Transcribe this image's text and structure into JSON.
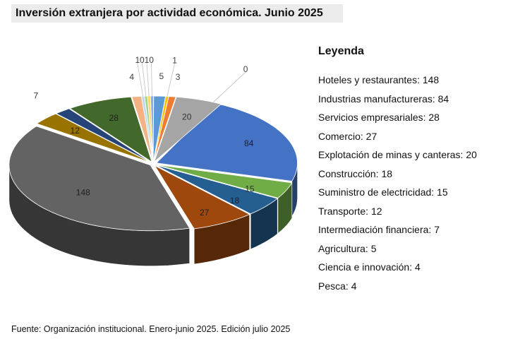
{
  "title": "Inversión extranjera por actividad económica. Junio 2025",
  "legend": {
    "title": "Leyenda",
    "items": [
      "Hoteles y restaurantes: 148",
      "Industrias manufactureras:  84",
      "Servicios empresariales: 28",
      "Comercio: 27",
      "Explotación de minas y canteras: 20",
      "Construcción: 18",
      "Suministro de electricidad: 15",
      "Transporte: 12",
      "Intermediación  financiera: 7",
      "Agricultura:  5",
      "Ciencia e innovación: 4",
      "Pesca: 4"
    ]
  },
  "source": "Fuente: Organización institucional.  Enero-junio 2025. Edición julio 2025",
  "chart_data": {
    "type": "pie",
    "style": "3d-exploded",
    "slices": [
      {
        "value": 0,
        "label": "0",
        "color": "#4472c4"
      },
      {
        "value": 84,
        "label": "84",
        "color": "#4472c4"
      },
      {
        "value": 15,
        "label": "15",
        "color": "#70ad47"
      },
      {
        "value": 18,
        "label": "18",
        "color": "#255e91"
      },
      {
        "value": 27,
        "label": "27",
        "color": "#9e480e"
      },
      {
        "value": 148,
        "label": "148",
        "color": "#636363"
      },
      {
        "value": 12,
        "label": "12",
        "color": "#997300"
      },
      {
        "value": 7,
        "label": "7",
        "color": "#264478"
      },
      {
        "value": 28,
        "label": "28",
        "color": "#43682b"
      },
      {
        "value": 4,
        "label": "4",
        "color": "#f4b183"
      },
      {
        "value": 1,
        "label": "1",
        "color": "#bdd7ee"
      },
      {
        "value": 0,
        "label": "0",
        "color": "#a9d18e"
      },
      {
        "value": 1,
        "label": "1",
        "color": "#ffd966"
      },
      {
        "value": 0,
        "label": "0",
        "color": "#8faadc"
      },
      {
        "value": 5,
        "label": "5",
        "color": "#5b9bd5"
      },
      {
        "value": 1,
        "label": "1",
        "color": "#ffc000"
      },
      {
        "value": 3,
        "label": "3",
        "color": "#ed7d31"
      },
      {
        "value": 20,
        "label": "20",
        "color": "#a5a5a5"
      }
    ]
  }
}
